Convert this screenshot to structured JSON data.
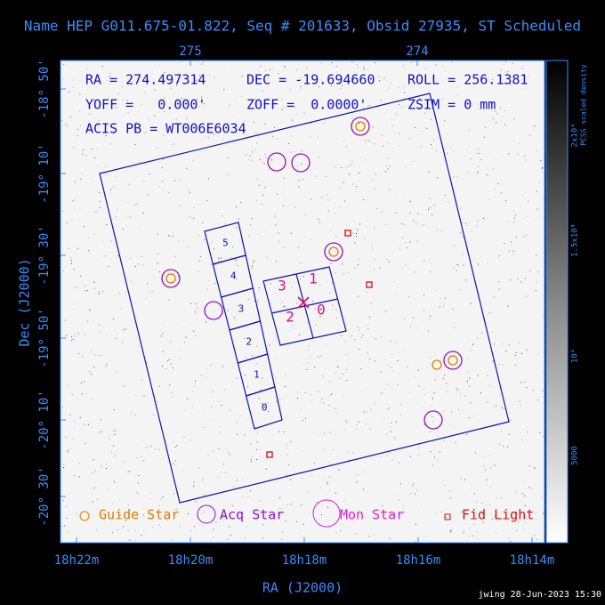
{
  "header": {
    "title": "Name HEP G011.675-01.822, Seq # 201633, Obsid 27935, ST Scheduled"
  },
  "info": {
    "ra": "RA = 274.497314",
    "dec": "DEC = -19.694660",
    "roll": "ROLL = 256.1381",
    "yoff": "YOFF =   0.000'",
    "zoff": "ZOFF =  0.0000'",
    "zsim": "ZSIM = 0 mm",
    "acis": "ACIS PB = WT006E6034"
  },
  "axes": {
    "x_label": "RA (J2000)",
    "y_label": "Dec (J2000)",
    "x_ticks": [
      "18h22m",
      "18h20m",
      "18h18m",
      "18h16m",
      "18h14m"
    ],
    "top_ticks": [
      "275",
      "274"
    ],
    "y_ticks": [
      "-18° 50'",
      "-19° 10'",
      "-19° 30'",
      "-19° 50'",
      "-20° 10'",
      "-20° 30'"
    ]
  },
  "chips": {
    "s": [
      "5",
      "4",
      "3",
      "2",
      "1",
      "0"
    ],
    "i": [
      "3",
      "1",
      "2",
      "0"
    ]
  },
  "legend": [
    "Guide Star",
    "Acq Star",
    "Mon Star",
    "Fid Light"
  ],
  "colorbar": {
    "label": "PCSS scaled density",
    "ticks": [
      "2x10⁴",
      "1.5x10⁴",
      "10⁴",
      "5000"
    ]
  },
  "footer": "jwing 28-Jun-2023 15:30"
}
